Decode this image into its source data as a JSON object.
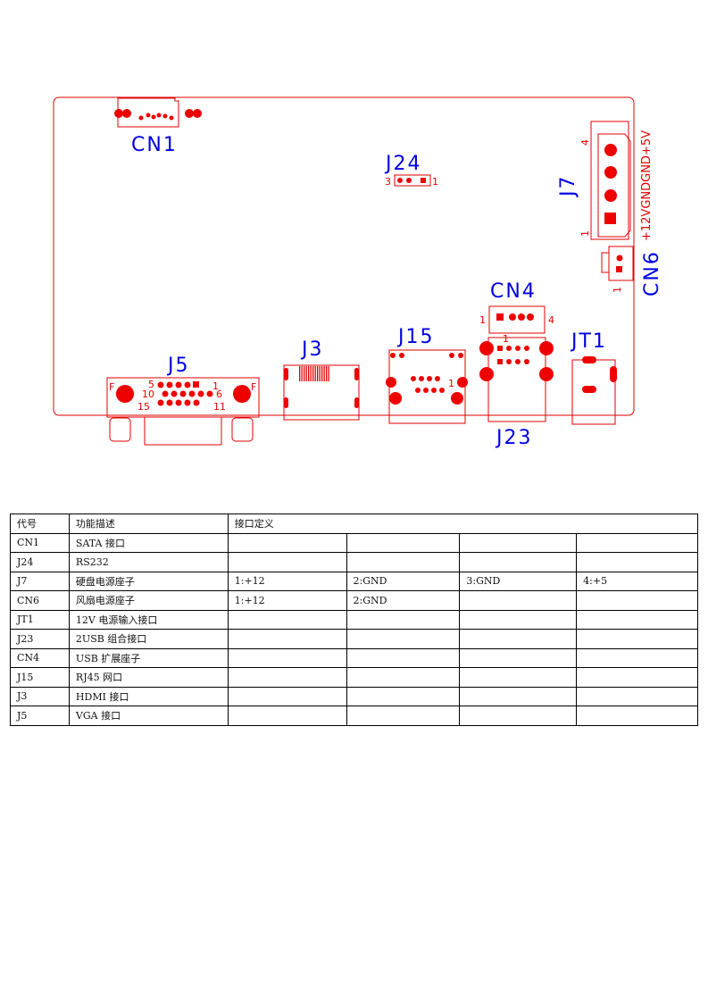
{
  "diagram": {
    "labels": {
      "CN1": "CN1",
      "J24": "J24",
      "J7": "J7",
      "CN6": "CN6",
      "CN4": "CN4",
      "J15": "J15",
      "J23": "J23",
      "JT1": "JT1",
      "J3": "J3",
      "J5": "J5"
    },
    "j7_signals": "+12VGNDGND+5V",
    "pin_labels": {
      "j24_left": "3",
      "j24_right": "1",
      "j7_top": "4",
      "j7_bottom": "1",
      "cn6": "1",
      "cn4_left": "1",
      "cn4_right": "4",
      "j23": "1",
      "j15": "1",
      "j5_5": "5",
      "j5_1": "1",
      "j5_10": "10",
      "j5_6": "6",
      "j5_15": "15",
      "j5_11": "11",
      "j5_f_left": "F",
      "j5_f_right": "F"
    },
    "colors": {
      "outline": "#e00000",
      "label": "#0000e0"
    }
  },
  "table": {
    "headers": [
      "代号",
      "功能描述",
      "接口定义"
    ],
    "rows": [
      {
        "code": "CN1",
        "desc": "SATA 接口",
        "pins": [
          "",
          "",
          "",
          ""
        ]
      },
      {
        "code": "J24",
        "desc": "RS232",
        "pins": [
          "",
          "",
          "",
          ""
        ]
      },
      {
        "code": "J7",
        "desc": "硬盘电源座子",
        "pins": [
          "1:+12",
          "2:GND",
          "3:GND",
          "4:+5"
        ]
      },
      {
        "code": "CN6",
        "desc": "风扇电源座子",
        "pins": [
          "1:+12",
          "2:GND",
          "",
          ""
        ]
      },
      {
        "code": "JT1",
        "desc": "12V 电源输入接口",
        "pins": [
          "",
          "",
          "",
          ""
        ]
      },
      {
        "code": "J23",
        "desc": "2USB 组合接口",
        "pins": [
          "",
          "",
          "",
          ""
        ]
      },
      {
        "code": "CN4",
        "desc": "USB 扩展座子",
        "pins": [
          "",
          "",
          "",
          ""
        ]
      },
      {
        "code": "J15",
        "desc": "RJ45 网口",
        "pins": [
          "",
          "",
          "",
          ""
        ]
      },
      {
        "code": "J3",
        "desc": "HDMI 接口",
        "pins": [
          "",
          "",
          "",
          ""
        ]
      },
      {
        "code": "J5",
        "desc": "VGA 接口",
        "pins": [
          "",
          "",
          "",
          ""
        ]
      }
    ]
  }
}
